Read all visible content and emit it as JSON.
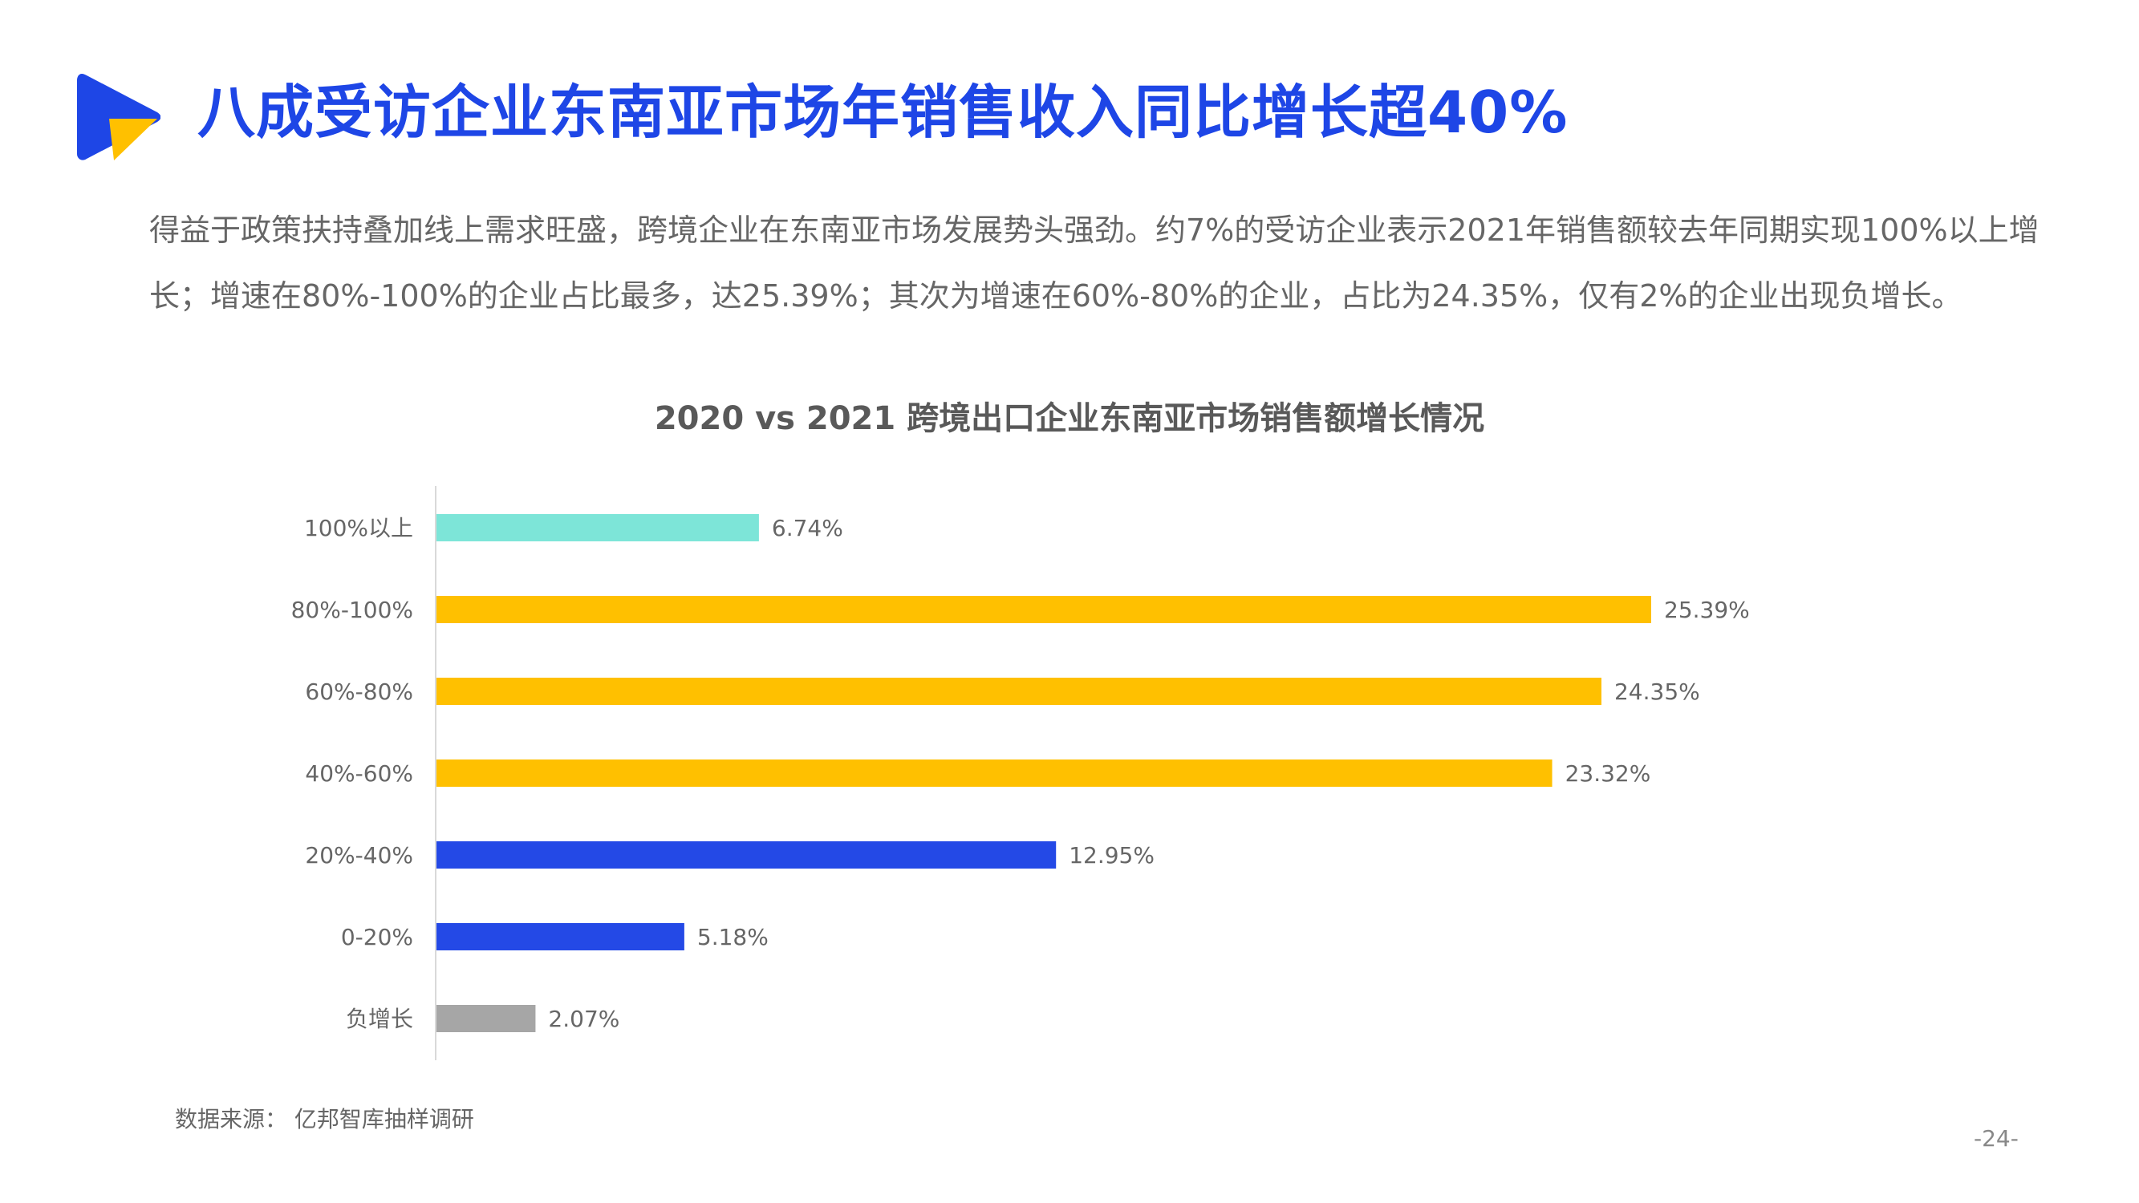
{
  "header": {
    "title": "八成受访企业东南亚市场年销售收入同比增长超40%"
  },
  "description": "得益于政策扶持叠加线上需求旺盛，跨境企业在东南亚市场发展势头强劲。约7%的受访企业表示2021年销售额较去年同期实现100%以上增长；增速在80%-100%的企业占比最多，达25.39%；其次为增速在60%-80%的企业，占比为24.35%，仅有2%的企业出现负增长。",
  "chart_data": {
    "type": "bar",
    "orientation": "horizontal",
    "title": "2020 vs 2021 跨境出口企业东南亚市场销售额增长情况",
    "categories": [
      "100%以上",
      "80%-100%",
      "60%-80%",
      "40%-60%",
      "20%-40%",
      "0-20%",
      "负增长"
    ],
    "values": [
      6.74,
      25.39,
      24.35,
      23.32,
      12.95,
      5.18,
      2.07
    ],
    "data_labels": [
      "6.74%",
      "25.39%",
      "24.35%",
      "23.32%",
      "12.95%",
      "5.18%",
      "2.07%"
    ],
    "colors": [
      "#7de5d8",
      "#ffc000",
      "#ffc000",
      "#ffc000",
      "#2449e6",
      "#2449e6",
      "#a6a6a6"
    ],
    "grid": false,
    "legend": "none"
  },
  "footer": {
    "source": "数据来源：  亿邦智库抽样调研",
    "page": "-24-"
  },
  "logo": {
    "icon": "play-logo-icon",
    "colors": [
      "#1e46e6",
      "#ffc000"
    ]
  }
}
